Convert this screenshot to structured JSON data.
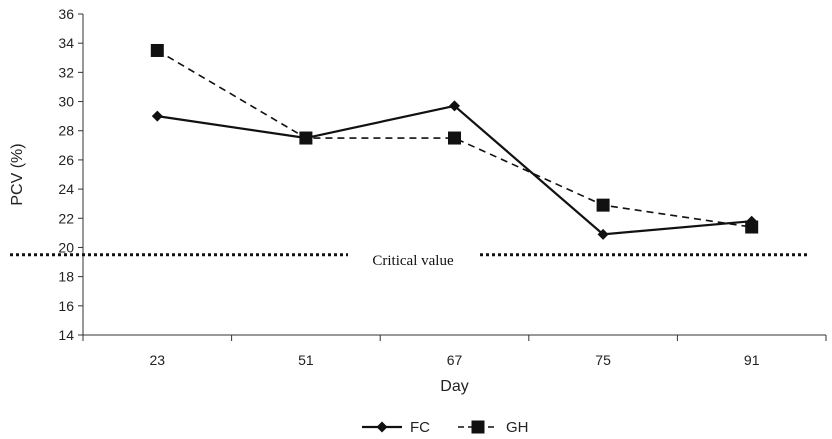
{
  "chart_data": {
    "type": "line",
    "title": "",
    "xlabel": "Day",
    "ylabel": "PCV (%)",
    "categories": [
      "23",
      "51",
      "67",
      "75",
      "91"
    ],
    "ylim": [
      14,
      36
    ],
    "yticks": [
      14,
      16,
      18,
      20,
      22,
      24,
      26,
      28,
      30,
      32,
      34,
      36
    ],
    "grid": false,
    "legend_position": "bottom-center",
    "series": [
      {
        "name": "FC",
        "values": [
          29.0,
          27.5,
          29.7,
          20.9,
          21.8
        ],
        "marker": "diamond",
        "line_style": "solid",
        "color": "#111111"
      },
      {
        "name": "GH",
        "values": [
          33.5,
          27.5,
          27.5,
          22.9,
          21.4
        ],
        "marker": "square",
        "line_style": "dashed",
        "color": "#111111"
      }
    ],
    "reference_line": {
      "label": "Critical value",
      "y": 19.5,
      "line_style": "dotted"
    }
  }
}
